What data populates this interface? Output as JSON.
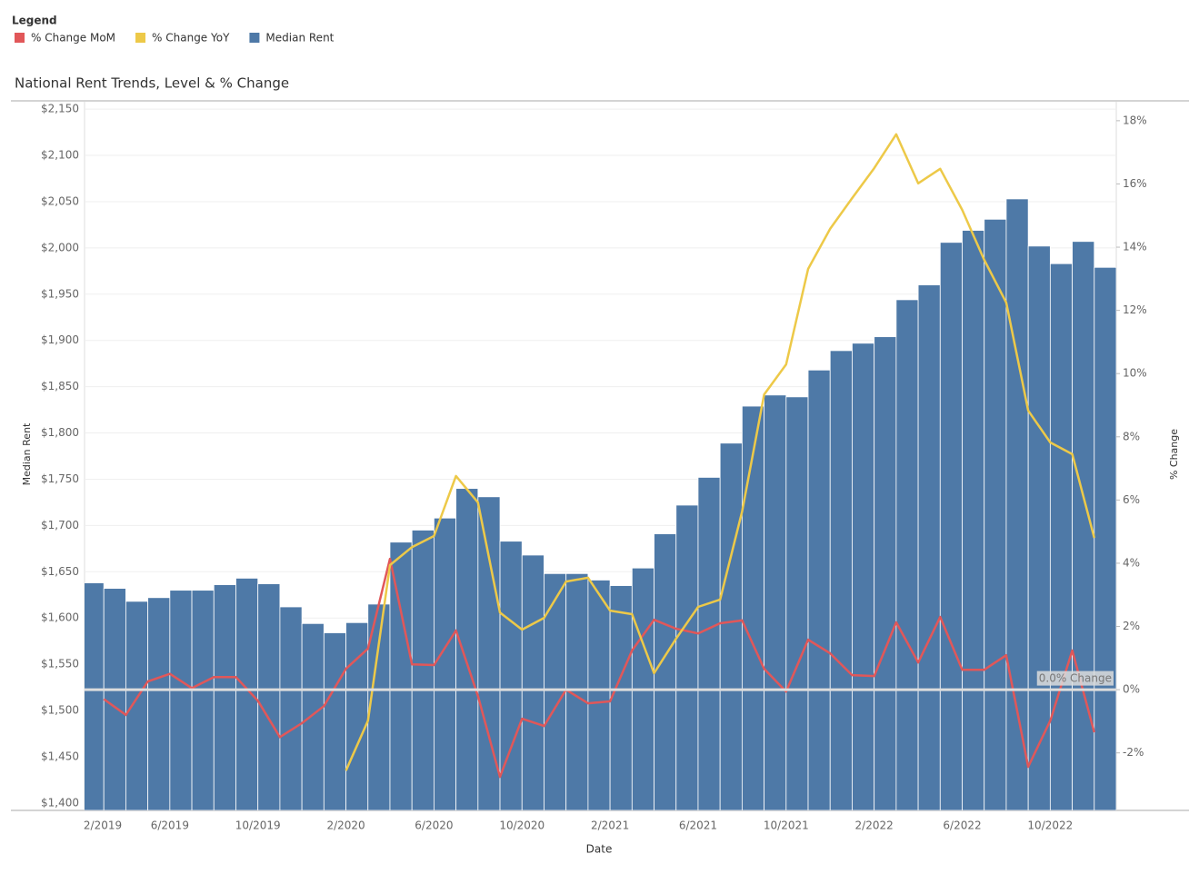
{
  "chart_data": {
    "type": "bar",
    "legend_title": "Legend",
    "title": "National Rent Trends, Level & % Change",
    "x_label": "Date",
    "y_label": "Median Rent",
    "y2_label": "% Change",
    "categories": [
      "2/2019",
      null,
      null,
      null,
      "6/2019",
      null,
      null,
      null,
      "10/2019",
      null,
      null,
      null,
      "2/2020",
      null,
      null,
      null,
      "6/2020",
      null,
      null,
      null,
      "10/2020",
      null,
      null,
      null,
      "2/2021",
      null,
      null,
      null,
      "6/2021",
      null,
      null,
      null,
      "10/2021",
      null,
      null,
      null,
      "2/2022",
      null,
      null,
      null,
      "6/2022",
      null,
      null,
      null,
      "10/2022",
      null,
      null
    ],
    "series": [
      {
        "name": "% Change MoM",
        "color": "#e15759",
        "type": "line",
        "axis": "y2",
        "values": [
          null,
          -0.3,
          -0.8,
          0.26,
          0.5,
          0.05,
          0.4,
          0.4,
          -0.35,
          -1.5,
          -1.06,
          -0.52,
          0.66,
          1.3,
          4.14,
          0.8,
          0.78,
          1.87,
          -0.2,
          -2.76,
          -0.92,
          -1.15,
          0,
          -0.43,
          -0.37,
          1.24,
          2.21,
          1.93,
          1.78,
          2.1,
          2.19,
          0.66,
          -0.06,
          1.58,
          1.15,
          0.46,
          0.43,
          2.13,
          0.86,
          2.3,
          0.63,
          0.63,
          1.09,
          -2.44,
          -0.98,
          1.24,
          -1.35
        ]
      },
      {
        "name": "% Change YoY",
        "color": "#edc948",
        "type": "line",
        "axis": "y2",
        "values": [
          null,
          null,
          null,
          null,
          null,
          null,
          null,
          null,
          null,
          null,
          null,
          null,
          -2.56,
          -0.98,
          3.94,
          4.51,
          4.86,
          6.76,
          5.92,
          2.44,
          1.9,
          2.27,
          3.42,
          3.54,
          2.5,
          2.39,
          0.52,
          1.61,
          2.62,
          2.85,
          5.64,
          9.34,
          10.29,
          13.31,
          14.58,
          15.55,
          16.5,
          17.57,
          16.02,
          16.48,
          15.18,
          13.6,
          12.25,
          8.83,
          7.82,
          7.45,
          4.8
        ]
      },
      {
        "name": "Median Rent",
        "color": "#4e79a7",
        "type": "bar",
        "axis": "y",
        "values": [
          1638,
          1632,
          1618,
          1622,
          1630,
          1630,
          1636,
          1643,
          1637,
          1612,
          1594,
          1584,
          1595,
          1615,
          1682,
          1695,
          1708,
          1740,
          1731,
          1683,
          1668,
          1648,
          1648,
          1641,
          1635,
          1654,
          1691,
          1722,
          1752,
          1789,
          1829,
          1841,
          1839,
          1868,
          1889,
          1897,
          1904,
          1944,
          1960,
          2006,
          2019,
          2031,
          2053,
          2002,
          1983,
          2007,
          1979
        ]
      }
    ],
    "ylim": [
      1392,
      2158
    ],
    "yticks": [
      {
        "value": 1400,
        "label": "$1,400"
      },
      {
        "value": 1450,
        "label": "$1,450"
      },
      {
        "value": 1500,
        "label": "$1,500"
      },
      {
        "value": 1550,
        "label": "$1,550"
      },
      {
        "value": 1600,
        "label": "$1,600"
      },
      {
        "value": 1650,
        "label": "$1,650"
      },
      {
        "value": 1700,
        "label": "$1,700"
      },
      {
        "value": 1750,
        "label": "$1,750"
      },
      {
        "value": 1800,
        "label": "$1,800"
      },
      {
        "value": 1850,
        "label": "$1,850"
      },
      {
        "value": 1900,
        "label": "$1,900"
      },
      {
        "value": 1950,
        "label": "$1,950"
      },
      {
        "value": 2000,
        "label": "$2,000"
      },
      {
        "value": 2050,
        "label": "$2,050"
      },
      {
        "value": 2100,
        "label": "$2,100"
      },
      {
        "value": 2150,
        "label": "$2,150"
      }
    ],
    "y2lim": [
      -3.82,
      18.6
    ],
    "y2ticks": [
      {
        "value": -2,
        "label": "-2%"
      },
      {
        "value": 0,
        "label": "0%"
      },
      {
        "value": 2,
        "label": "2%"
      },
      {
        "value": 4,
        "label": "4%"
      },
      {
        "value": 6,
        "label": "6%"
      },
      {
        "value": 8,
        "label": "8%"
      },
      {
        "value": 10,
        "label": "10%"
      },
      {
        "value": 12,
        "label": "12%"
      },
      {
        "value": 14,
        "label": "14%"
      },
      {
        "value": 16,
        "label": "16%"
      },
      {
        "value": 18,
        "label": "18%"
      }
    ],
    "reference_line": {
      "value": 0,
      "label": "0.0% Change",
      "axis": "y2"
    },
    "grid": true
  }
}
